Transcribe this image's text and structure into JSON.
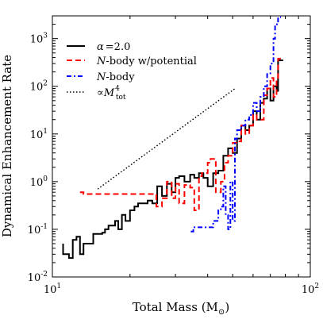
{
  "chart_data": {
    "type": "line",
    "xlabel": "Total Mass (M⊙)",
    "ylabel": "Dynamical Enhancement Rate",
    "x_scale": "log",
    "y_scale": "log",
    "xlim": [
      10,
      100
    ],
    "ylim": [
      0.01,
      3000
    ],
    "x_ticks": [
      {
        "value": 10,
        "base": "10",
        "exp": "1"
      },
      {
        "value": 100,
        "base": "10",
        "exp": "2"
      }
    ],
    "y_ticks": [
      {
        "value": 0.01,
        "base": "10",
        "exp": "-2"
      },
      {
        "value": 0.1,
        "base": "10",
        "exp": "-1"
      },
      {
        "value": 1,
        "base": "10",
        "exp": "0"
      },
      {
        "value": 10,
        "base": "10",
        "exp": "1"
      },
      {
        "value": 100,
        "base": "10",
        "exp": "2"
      },
      {
        "value": 1000,
        "base": "10",
        "exp": "3"
      }
    ],
    "legend_position": "top-left",
    "series": [
      {
        "key": "alpha",
        "name": "α = 2.0",
        "color": "#000000",
        "line_style": "solid",
        "step": true,
        "points": [
          [
            11,
            0.05
          ],
          [
            11.6,
            0.03
          ],
          [
            12,
            0.025
          ],
          [
            12.4,
            0.06
          ],
          [
            12.8,
            0.07
          ],
          [
            13.2,
            0.03
          ],
          [
            13.6,
            0.05
          ],
          [
            14.4,
            0.05
          ],
          [
            14.8,
            0.08
          ],
          [
            15.6,
            0.08
          ],
          [
            16,
            0.085
          ],
          [
            16.5,
            0.1
          ],
          [
            17,
            0.12
          ],
          [
            17.5,
            0.12
          ],
          [
            18,
            0.15
          ],
          [
            18.6,
            0.1
          ],
          [
            19.2,
            0.2
          ],
          [
            20,
            0.15
          ],
          [
            20.8,
            0.25
          ],
          [
            21.5,
            0.3
          ],
          [
            22.4,
            0.35
          ],
          [
            23.4,
            0.35
          ],
          [
            24.4,
            0.4
          ],
          [
            25.5,
            0.35
          ],
          [
            26.6,
            0.8
          ],
          [
            27.8,
            0.5
          ],
          [
            29,
            0.9
          ],
          [
            30,
            0.6
          ],
          [
            31,
            1.2
          ],
          [
            32.5,
            1.3
          ],
          [
            34.2,
            1.0
          ],
          [
            35.5,
            1.4
          ],
          [
            37,
            1.2
          ],
          [
            38.5,
            1.5
          ],
          [
            40,
            1.2
          ],
          [
            42,
            0.8
          ],
          [
            44,
            1.5
          ],
          [
            46,
            1.7
          ],
          [
            48,
            3.5
          ],
          [
            50,
            5.0
          ],
          [
            52,
            4.0
          ],
          [
            54,
            8.0
          ],
          [
            56,
            15
          ],
          [
            58,
            12
          ],
          [
            60,
            15
          ],
          [
            62,
            30
          ],
          [
            64,
            20
          ],
          [
            66,
            45
          ],
          [
            68,
            55
          ],
          [
            70,
            90
          ],
          [
            72,
            50
          ],
          [
            74,
            100
          ],
          [
            75,
            80
          ],
          [
            76,
            350
          ],
          [
            78.5,
            350
          ]
        ]
      },
      {
        "key": "nbody_pot",
        "name": "N-body w/potential",
        "color": "#ff0000",
        "line_style": "dashed",
        "step": true,
        "points": [
          [
            12.8,
            0.6
          ],
          [
            13.2,
            0.6
          ],
          [
            25.3,
            0.55
          ],
          [
            26.6,
            0.3
          ],
          [
            27.8,
            0.45
          ],
          [
            29,
            1.0
          ],
          [
            30,
            0.45
          ],
          [
            31,
            0.9
          ],
          [
            32.5,
            0.35
          ],
          [
            34.2,
            0.85
          ],
          [
            35.5,
            0.75
          ],
          [
            37,
            0.25
          ],
          [
            38,
            1.3
          ],
          [
            40,
            1.5
          ],
          [
            41,
            2.5
          ],
          [
            43,
            3.0
          ],
          [
            45,
            0.6
          ],
          [
            46.5,
            1.0
          ],
          [
            48,
            2.5
          ],
          [
            50,
            3.5
          ],
          [
            52,
            6.5
          ],
          [
            54,
            7.0
          ],
          [
            56,
            15
          ],
          [
            58,
            10
          ],
          [
            60,
            15
          ],
          [
            62,
            25
          ],
          [
            64,
            20
          ],
          [
            66,
            20
          ],
          [
            68,
            65
          ],
          [
            70,
            90
          ],
          [
            72,
            150
          ],
          [
            74,
            60
          ],
          [
            75,
            150
          ],
          [
            76,
            380
          ],
          [
            78.5,
            380
          ]
        ]
      },
      {
        "key": "nbody",
        "name": "N-body",
        "color": "#0000ff",
        "line_style": "dashdot",
        "step": true,
        "points": [
          [
            34.4,
            0.09
          ],
          [
            35.2,
            0.09
          ],
          [
            42,
            0.11
          ],
          [
            44,
            0.15
          ],
          [
            45,
            0.25
          ],
          [
            46,
            0.3
          ],
          [
            47,
            0.8
          ],
          [
            48,
            0.2
          ],
          [
            49,
            0.1
          ],
          [
            50,
            1.0
          ],
          [
            51,
            0.15
          ],
          [
            52,
            8.0
          ],
          [
            54,
            12
          ],
          [
            56,
            15
          ],
          [
            58,
            20
          ],
          [
            60,
            25
          ],
          [
            62,
            45
          ],
          [
            64,
            30
          ],
          [
            66,
            60
          ],
          [
            68,
            100
          ],
          [
            70,
            180
          ],
          [
            72,
            300
          ],
          [
            73,
            1000
          ],
          [
            75,
            2000
          ],
          [
            76,
            2800
          ],
          [
            77,
            2800
          ]
        ]
      },
      {
        "key": "mass4",
        "name": "∝M_tot^4",
        "color": "#000000",
        "line_style": "dotted",
        "step": false,
        "points": [
          [
            15,
            0.7
          ],
          [
            51,
            89.4
          ]
        ]
      }
    ],
    "legend_text": {
      "alpha_sym": "α",
      "alpha_val": "=2.0",
      "nbody_pot_n": "N",
      "nbody_pot_rest": "-body w/potential",
      "nbody_n": "N",
      "nbody_rest": "-body",
      "prop": "∝",
      "m": "M",
      "exp": "4",
      "sub": "tot"
    },
    "xlabel_parts": {
      "main": "Total Mass (M",
      "sub": "⊙",
      "close": ")"
    }
  }
}
